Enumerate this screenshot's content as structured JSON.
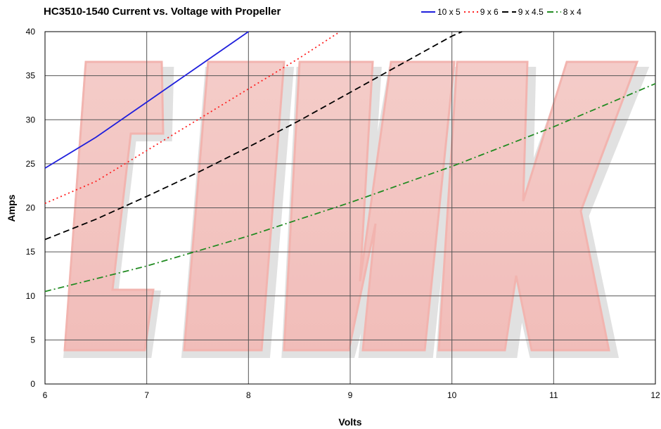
{
  "chart_data": {
    "type": "line",
    "title": "HC3510-1540 Current vs. Voltage with Propeller",
    "xlabel": "Volts",
    "ylabel": "Amps",
    "xlim": [
      6,
      12
    ],
    "ylim": [
      0,
      40
    ],
    "xticks": [
      6,
      7,
      8,
      9,
      10,
      11,
      12
    ],
    "yticks": [
      0,
      5,
      10,
      15,
      20,
      25,
      30,
      35,
      40
    ],
    "grid": true,
    "legend_position": "top-right",
    "series": [
      {
        "name": "10 x 5",
        "color": "#1f1fdc",
        "dash": "solid",
        "x": [
          6,
          6.5,
          7,
          7.5,
          8
        ],
        "y": [
          24.5,
          28,
          32,
          36,
          40
        ]
      },
      {
        "name": "9 x 6",
        "color": "#ff2020",
        "dash": "dotted",
        "x": [
          6,
          6.5,
          7,
          7.5,
          8,
          8.5,
          8.9
        ],
        "y": [
          20.5,
          23,
          26.5,
          30,
          33.5,
          37,
          40
        ]
      },
      {
        "name": "9 x 4.5",
        "color": "#000000",
        "dash": "dashed",
        "x": [
          6,
          6.5,
          7,
          7.5,
          8,
          8.5,
          9,
          9.5,
          10,
          10.1
        ],
        "y": [
          16.4,
          18.7,
          21.3,
          24,
          26.9,
          29.9,
          33.1,
          36.3,
          39.5,
          40
        ]
      },
      {
        "name": "8 x 4",
        "color": "#228b22",
        "dash": "dashdot",
        "x": [
          6,
          7,
          8,
          9,
          10,
          11,
          12
        ],
        "y": [
          10.5,
          13.4,
          16.8,
          20.6,
          24.7,
          29.2,
          34.1
        ]
      }
    ]
  }
}
